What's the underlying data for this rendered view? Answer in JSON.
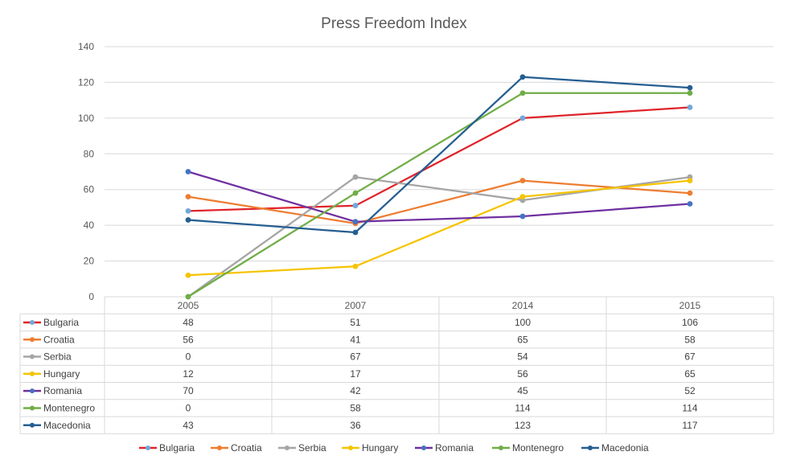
{
  "chart_data": {
    "type": "line",
    "title": "Press Freedom Index",
    "xlabel": "",
    "ylabel": "",
    "categories": [
      "2005",
      "2007",
      "2014",
      "2015"
    ],
    "ylim": [
      0,
      140
    ],
    "yticks": [
      0,
      20,
      40,
      60,
      80,
      100,
      120,
      140
    ],
    "grid": true,
    "legend_position": "bottom",
    "data_table": true,
    "series": [
      {
        "name": "Bulgaria",
        "color": "#E0242A",
        "marker_color": "#6FA8DC",
        "values": [
          48,
          51,
          100,
          106
        ]
      },
      {
        "name": "Croatia",
        "color": "#ED7D31",
        "marker_color": "#ED7D31",
        "values": [
          56,
          41,
          65,
          58
        ]
      },
      {
        "name": "Serbia",
        "color": "#A5A5A5",
        "marker_color": "#A5A5A5",
        "values": [
          0,
          67,
          54,
          67
        ]
      },
      {
        "name": "Hungary",
        "color": "#F5C400",
        "marker_color": "#F5C400",
        "values": [
          12,
          17,
          56,
          65
        ]
      },
      {
        "name": "Romania",
        "color": "#7030A0",
        "marker_color": "#4472C4",
        "values": [
          70,
          42,
          45,
          52
        ]
      },
      {
        "name": "Montenegro",
        "color": "#70AD47",
        "marker_color": "#70AD47",
        "values": [
          0,
          58,
          114,
          114
        ]
      },
      {
        "name": "Macedonia",
        "color": "#255E91",
        "marker_color": "#255E91",
        "values": [
          43,
          36,
          123,
          117
        ]
      }
    ]
  }
}
